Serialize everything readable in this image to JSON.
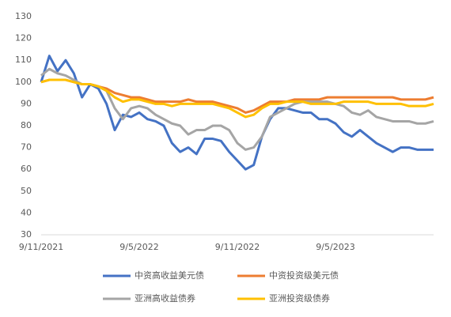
{
  "chart_data": {
    "type": "line",
    "categories": [
      "9/11/2021",
      null,
      null,
      null,
      null,
      null,
      null,
      null,
      null,
      null,
      null,
      null,
      "9/5/2022",
      null,
      null,
      null,
      null,
      null,
      null,
      null,
      null,
      null,
      null,
      null,
      "9/11/2022",
      null,
      null,
      null,
      null,
      null,
      null,
      null,
      null,
      null,
      null,
      null,
      "9/5/2023",
      null,
      null,
      null,
      null,
      null,
      null,
      null,
      null,
      null,
      null,
      null,
      null
    ],
    "series": [
      {
        "name": "中资高收益美元债",
        "color": "#4472c4",
        "values": [
          100,
          112,
          105,
          110,
          104,
          93,
          99,
          97,
          90,
          78,
          85,
          84,
          86,
          83,
          82,
          80,
          72,
          68,
          70,
          67,
          74,
          74,
          73,
          68,
          64,
          60,
          62,
          75,
          83,
          88,
          88,
          87,
          86,
          86,
          83,
          83,
          81,
          77,
          75,
          78,
          75,
          72,
          70,
          68,
          70,
          70,
          69,
          69,
          69
        ]
      },
      {
        "name": "中资投资级美元债",
        "color": "#ed7d31",
        "values": [
          100,
          101,
          101,
          101,
          100,
          99,
          99,
          98,
          97,
          95,
          94,
          93,
          93,
          92,
          91,
          91,
          91,
          91,
          92,
          91,
          91,
          91,
          90,
          89,
          88,
          86,
          87,
          89,
          91,
          91,
          91,
          92,
          92,
          92,
          92,
          93,
          93,
          93,
          93,
          93,
          93,
          93,
          93,
          93,
          92,
          92,
          92,
          92,
          93
        ]
      },
      {
        "name": "亚洲高收益债券",
        "color": "#a5a5a5",
        "values": [
          103,
          106,
          104,
          103,
          101,
          99,
          99,
          98,
          96,
          88,
          83,
          88,
          89,
          88,
          85,
          83,
          81,
          80,
          76,
          78,
          78,
          80,
          80,
          78,
          72,
          69,
          70,
          75,
          84,
          86,
          88,
          90,
          91,
          91,
          91,
          91,
          90,
          89,
          86,
          85,
          87,
          84,
          83,
          82,
          82,
          82,
          81,
          81,
          82
        ]
      },
      {
        "name": "亚洲投资级债券",
        "color": "#ffc000",
        "values": [
          100,
          101,
          101,
          101,
          100,
          99,
          99,
          98,
          96,
          93,
          91,
          92,
          92,
          91,
          90,
          90,
          89,
          90,
          90,
          90,
          90,
          90,
          89,
          88,
          86,
          84,
          85,
          88,
          90,
          90,
          91,
          91,
          91,
          90,
          90,
          90,
          90,
          91,
          91,
          91,
          91,
          90,
          90,
          90,
          90,
          89,
          89,
          89,
          90
        ]
      }
    ],
    "ylim": [
      30,
      130
    ],
    "yticks": [
      30,
      40,
      50,
      60,
      70,
      80,
      90,
      100,
      110,
      120,
      130
    ],
    "grid": false,
    "legend": "bottom"
  }
}
